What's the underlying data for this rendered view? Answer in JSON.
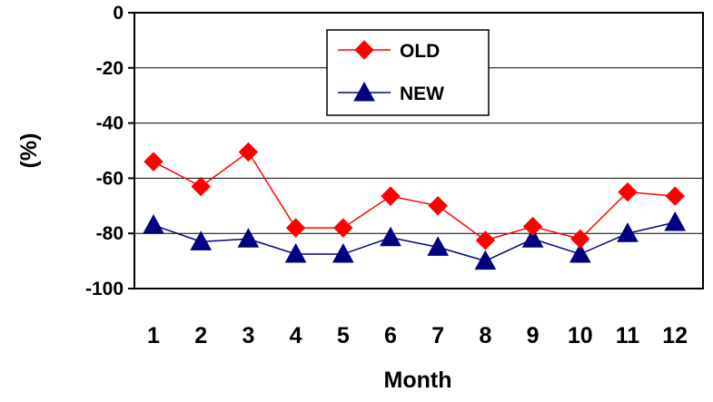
{
  "chart_data": {
    "type": "line",
    "categories": [
      "1",
      "2",
      "3",
      "4",
      "5",
      "6",
      "7",
      "8",
      "9",
      "10",
      "11",
      "12"
    ],
    "series": [
      {
        "name": "OLD",
        "color": "#ff0000",
        "marker": "diamond",
        "values": [
          -54,
          -63,
          -50.5,
          -78,
          -78,
          -66.5,
          -70,
          -82.5,
          -77.5,
          -82,
          -65,
          -66.5
        ]
      },
      {
        "name": "NEW",
        "color": "#000080",
        "marker": "triangle",
        "values": [
          -77,
          -83,
          -82,
          -87.5,
          -87.5,
          -81.5,
          -85,
          -90,
          -82,
          -87.5,
          -80,
          -76
        ]
      }
    ],
    "xlabel": "Month",
    "ylabel": "(%)",
    "ylim": [
      -100,
      0
    ],
    "yticks": [
      "0",
      "-20",
      "-40",
      "-60",
      "-80",
      "-100"
    ],
    "grid": "horizontal",
    "legend": "top-center"
  }
}
